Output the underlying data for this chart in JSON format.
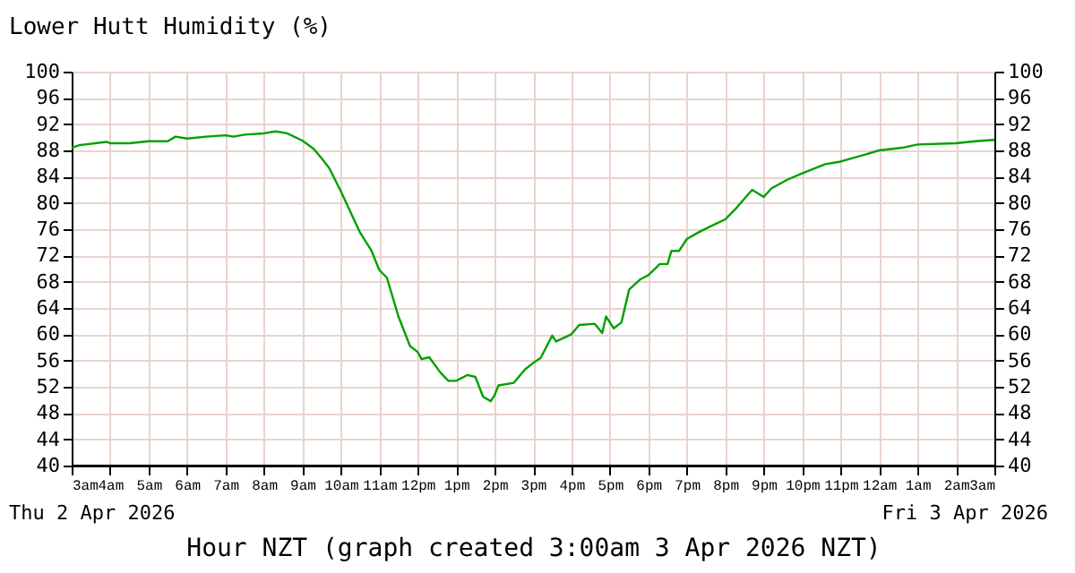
{
  "chart_data": {
    "type": "line",
    "title": "Lower Hutt Humidity (%)",
    "xlabel": "Hour NZT (graph created 3:00am 3 Apr 2026 NZT)",
    "annotations": [
      "Thu 2 Apr 2026",
      "Fri 3 Apr 2026"
    ],
    "x": [
      "2026-04-02T03:00",
      "2026-04-02T03:12",
      "2026-04-02T03:54",
      "2026-04-02T04:00",
      "2026-04-02T04:30",
      "2026-04-02T05:00",
      "2026-04-02T05:30",
      "2026-04-02T05:42",
      "2026-04-02T06:00",
      "2026-04-02T06:30",
      "2026-04-02T07:00",
      "2026-04-02T07:12",
      "2026-04-02T07:30",
      "2026-04-02T08:00",
      "2026-04-02T08:18",
      "2026-04-02T08:36",
      "2026-04-02T09:00",
      "2026-04-02T09:18",
      "2026-04-02T09:30",
      "2026-04-02T09:42",
      "2026-04-02T10:00",
      "2026-04-02T10:30",
      "2026-04-02T10:48",
      "2026-04-02T11:00",
      "2026-04-02T11:12",
      "2026-04-02T11:30",
      "2026-04-02T11:48",
      "2026-04-02T12:00",
      "2026-04-02T12:06",
      "2026-04-02T12:18",
      "2026-04-02T12:36",
      "2026-04-02T12:48",
      "2026-04-02T13:00",
      "2026-04-02T13:18",
      "2026-04-02T13:30",
      "2026-04-02T13:42",
      "2026-04-02T13:54",
      "2026-04-02T14:00",
      "2026-04-02T14:06",
      "2026-04-02T14:30",
      "2026-04-02T14:48",
      "2026-04-02T15:00",
      "2026-04-02T15:12",
      "2026-04-02T15:30",
      "2026-04-02T15:36",
      "2026-04-02T16:00",
      "2026-04-02T16:12",
      "2026-04-02T16:36",
      "2026-04-02T16:48",
      "2026-04-02T16:54",
      "2026-04-02T17:06",
      "2026-04-02T17:18",
      "2026-04-02T17:30",
      "2026-04-02T17:48",
      "2026-04-02T18:00",
      "2026-04-02T18:18",
      "2026-04-02T18:30",
      "2026-04-02T18:36",
      "2026-04-02T18:48",
      "2026-04-02T19:00",
      "2026-04-02T19:18",
      "2026-04-02T19:36",
      "2026-04-02T20:00",
      "2026-04-02T20:18",
      "2026-04-02T20:42",
      "2026-04-02T21:00",
      "2026-04-02T21:12",
      "2026-04-02T21:36",
      "2026-04-02T22:00",
      "2026-04-02T22:36",
      "2026-04-02T23:00",
      "2026-04-02T23:36",
      "2026-04-03T00:00",
      "2026-04-03T00:36",
      "2026-04-03T01:00",
      "2026-04-03T02:00",
      "2026-04-03T02:30",
      "2026-04-03T03:00"
    ],
    "series": [
      {
        "color": "#00a000",
        "values": [
          88.4,
          88.8,
          89.3,
          89.1,
          89.1,
          89.4,
          89.4,
          90.1,
          89.8,
          90.1,
          90.3,
          90.1,
          90.4,
          90.6,
          90.9,
          90.6,
          89.5,
          88.2,
          86.8,
          85.3,
          81.8,
          75.5,
          72.7,
          69.8,
          68.6,
          62.7,
          58.2,
          57.3,
          56.2,
          56.5,
          54.1,
          52.9,
          52.9,
          53.8,
          53.5,
          50.5,
          49.8,
          50.7,
          52.2,
          52.6,
          54.7,
          55.6,
          56.4,
          59.8,
          58.9,
          60.0,
          61.4,
          61.6,
          60.2,
          62.7,
          60.9,
          61.8,
          66.8,
          68.4,
          69.0,
          70.7,
          70.7,
          72.7,
          72.7,
          74.5,
          75.5,
          76.4,
          77.5,
          79.3,
          82.0,
          80.9,
          82.2,
          83.5,
          84.5,
          85.9,
          86.3,
          87.3,
          88.0,
          88.4,
          88.9,
          89.1,
          89.4,
          89.6
        ]
      }
    ],
    "xlim": [
      "2026-04-02T03:00",
      "2026-04-03T03:00"
    ],
    "xticks": [
      {
        "value": "2026-04-02T03:00",
        "label": "3am"
      },
      {
        "value": "2026-04-02T04:00",
        "label": "4am"
      },
      {
        "value": "2026-04-02T05:00",
        "label": "5am"
      },
      {
        "value": "2026-04-02T06:00",
        "label": "6am"
      },
      {
        "value": "2026-04-02T07:00",
        "label": "7am"
      },
      {
        "value": "2026-04-02T08:00",
        "label": "8am"
      },
      {
        "value": "2026-04-02T09:00",
        "label": "9am"
      },
      {
        "value": "2026-04-02T10:00",
        "label": "10am"
      },
      {
        "value": "2026-04-02T11:00",
        "label": "11am"
      },
      {
        "value": "2026-04-02T12:00",
        "label": "12pm"
      },
      {
        "value": "2026-04-02T13:00",
        "label": "1pm"
      },
      {
        "value": "2026-04-02T14:00",
        "label": "2pm"
      },
      {
        "value": "2026-04-02T15:00",
        "label": "3pm"
      },
      {
        "value": "2026-04-02T16:00",
        "label": "4pm"
      },
      {
        "value": "2026-04-02T17:00",
        "label": "5pm"
      },
      {
        "value": "2026-04-02T18:00",
        "label": "6pm"
      },
      {
        "value": "2026-04-02T19:00",
        "label": "7pm"
      },
      {
        "value": "2026-04-02T20:00",
        "label": "8pm"
      },
      {
        "value": "2026-04-02T21:00",
        "label": "9pm"
      },
      {
        "value": "2026-04-02T22:00",
        "label": "10pm"
      },
      {
        "value": "2026-04-02T23:00",
        "label": "11pm"
      },
      {
        "value": "2026-04-03T00:00",
        "label": "12am"
      },
      {
        "value": "2026-04-03T01:00",
        "label": "1am"
      },
      {
        "value": "2026-04-03T02:00",
        "label": "2am"
      },
      {
        "value": "2026-04-03T03:00",
        "label": "3am"
      }
    ],
    "ylim": [
      40,
      100
    ],
    "yticks": [
      40,
      44,
      48,
      52,
      56,
      60,
      64,
      68,
      72,
      76,
      80,
      84,
      88,
      92,
      96,
      100
    ],
    "y2lim": [
      40,
      100
    ],
    "y2ticks": [
      40,
      44,
      48,
      52,
      56,
      60,
      64,
      68,
      72,
      76,
      80,
      84,
      88,
      92,
      96,
      100
    ],
    "grid": true,
    "marker": "none",
    "line_style": "solid"
  }
}
